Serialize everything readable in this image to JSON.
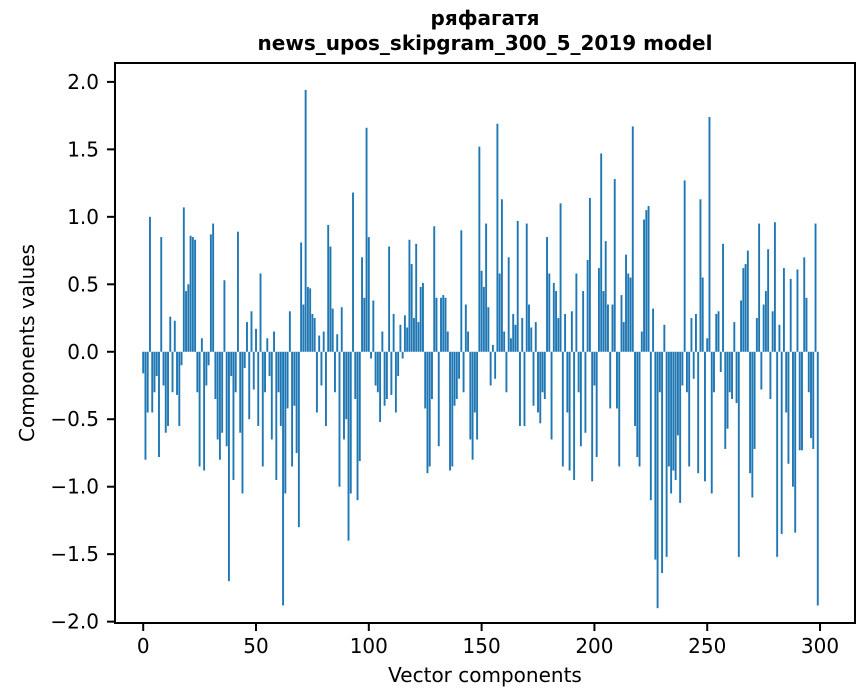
{
  "figure": {
    "title_line1": "ряфагатя",
    "title_line2": "news_upos_skipgram_300_5_2019 model",
    "background_color": "#ffffff"
  },
  "chart_data": {
    "type": "bar",
    "title": "ряфагатя\nnews_upos_skipgram_300_5_2019 model",
    "xlabel": "Vector components",
    "ylabel": "Components values",
    "legend": null,
    "grid": false,
    "bar_color": "#1f77b4",
    "axis_color": "#000000",
    "xlim": [
      -12.5,
      315.5
    ],
    "ylim": [
      -2.01,
      2.14
    ],
    "x_ticks": [
      0,
      50,
      100,
      150,
      200,
      250,
      300
    ],
    "x_tick_labels": [
      "0",
      "50",
      "100",
      "150",
      "200",
      "250",
      "300"
    ],
    "y_ticks": [
      2.0,
      1.5,
      1.0,
      0.5,
      0.0,
      -0.5,
      -1.0,
      -1.5,
      -2.0
    ],
    "y_tick_labels": [
      "2.0",
      "1.5",
      "1.0",
      "0.5",
      "0.0",
      "−0.5",
      "−1.0",
      "−1.5",
      "−2.0"
    ],
    "x_description": "component index 0..299, one bar per vector component",
    "values": [
      -0.16,
      -0.8,
      -0.45,
      1.0,
      -0.45,
      -0.3,
      -0.18,
      -0.78,
      0.85,
      -0.25,
      -0.6,
      -0.55,
      0.26,
      -0.3,
      0.23,
      -0.32,
      -0.55,
      -0.1,
      1.07,
      0.45,
      0.5,
      0.86,
      0.85,
      0.83,
      -0.3,
      -0.85,
      0.1,
      -0.88,
      -0.25,
      -0.1,
      0.87,
      0.95,
      -0.35,
      -0.65,
      -0.8,
      -0.6,
      0.53,
      -0.7,
      -1.7,
      -0.18,
      -0.95,
      -0.3,
      0.89,
      -0.6,
      -1.05,
      -0.12,
      0.22,
      -0.5,
      0.3,
      -0.28,
      0.17,
      -0.55,
      0.58,
      -0.85,
      -0.3,
      0.1,
      -0.18,
      -0.65,
      0.15,
      -0.95,
      -0.3,
      -0.55,
      -1.88,
      -1.05,
      -0.42,
      0.3,
      -0.85,
      -0.4,
      -0.75,
      -1.3,
      0.81,
      0.35,
      1.94,
      0.48,
      0.47,
      0.28,
      0.25,
      -0.45,
      0.12,
      -0.25,
      0.15,
      -0.55,
      0.94,
      0.78,
      0.32,
      -0.3,
      0.13,
      -1.0,
      0.33,
      -0.65,
      -0.5,
      -1.4,
      -1.05,
      1.18,
      -0.35,
      -1.1,
      -0.81,
      0.7,
      0.4,
      1.66,
      0.85,
      -0.05,
      0.38,
      -0.25,
      -0.3,
      -0.52,
      0.15,
      -0.4,
      -0.35,
      0.78,
      -0.32,
      0.28,
      -0.45,
      -0.18,
      0.2,
      -0.05,
      0.27,
      0.18,
      0.83,
      0.65,
      0.25,
      0.8,
      0.22,
      0.48,
      0.51,
      -0.42,
      -0.9,
      -0.85,
      -0.35,
      0.93,
      0.4,
      -0.7,
      0.4,
      0.42,
      0.4,
      0.15,
      -0.88,
      -0.85,
      -0.4,
      -0.35,
      -0.2,
      0.9,
      -0.3,
      0.35,
      0.15,
      -0.65,
      -0.8,
      -0.45,
      -0.65,
      1.52,
      0.6,
      0.48,
      0.95,
      0.33,
      -0.25,
      0.05,
      -0.2,
      1.69,
      0.58,
      1.13,
      0.15,
      -0.3,
      0.7,
      0.1,
      0.28,
      0.2,
      0.97,
      -0.55,
      0.25,
      -0.55,
      0.95,
      0.35,
      0.18,
      -0.4,
      0.22,
      -0.45,
      -0.53,
      -0.3,
      -0.35,
      0.85,
      0.58,
      -0.65,
      0.51,
      0.45,
      0.25,
      1.1,
      -0.85,
      0.28,
      -0.45,
      -0.88,
      0.3,
      -0.95,
      0.58,
      -0.3,
      -0.7,
      0.45,
      -0.6,
      0.68,
      1.14,
      -0.96,
      -0.25,
      -0.78,
      0.62,
      1.47,
      0.45,
      0.82,
      0.35,
      -0.42,
      0.35,
      1.28,
      -0.42,
      -0.85,
      0.42,
      0.22,
      0.72,
      0.58,
      0.55,
      1.67,
      -0.55,
      -0.78,
      -0.85,
      0.15,
      0.98,
      1.05,
      1.08,
      -1.1,
      0.32,
      -1.54,
      -1.9,
      -0.3,
      -1.64,
      0.2,
      -1.52,
      -0.85,
      -1.05,
      -0.88,
      -0.95,
      -0.62,
      -1.12,
      -0.25,
      1.27,
      -0.3,
      -0.85,
      0.25,
      -0.2,
      0.28,
      -0.9,
      1.13,
      0.55,
      -0.96,
      0.1,
      1.74,
      -1.05,
      -0.3,
      0.28,
      0.3,
      -0.15,
      0.8,
      -0.72,
      -0.57,
      -0.3,
      -0.35,
      0.22,
      -0.38,
      -1.52,
      0.38,
      0.62,
      0.65,
      0.75,
      -0.9,
      -1.08,
      -0.72,
      0.25,
      0.95,
      -0.28,
      0.35,
      0.45,
      0.76,
      -0.35,
      0.3,
      0.96,
      -1.52,
      0.2,
      -1.35,
      0.62,
      -0.45,
      -0.83,
      0.54,
      -1.0,
      -1.34,
      0.61,
      -0.73,
      -0.73,
      0.7,
      0.4,
      -0.3,
      -0.64,
      -0.72,
      0.95,
      -1.88
    ]
  }
}
